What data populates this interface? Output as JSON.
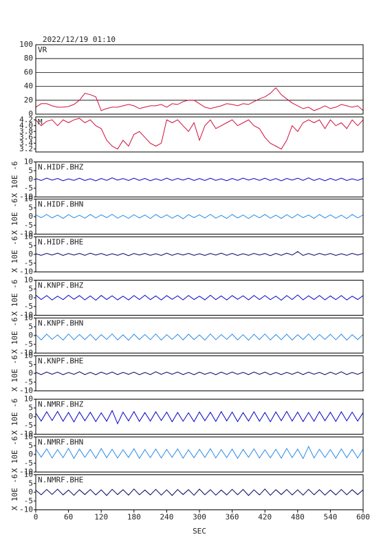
{
  "chart_data": {
    "type": "line",
    "title": "2022/12/19 01:10",
    "xlabel": "SEC",
    "x": [
      0,
      10,
      20,
      30,
      40,
      50,
      60,
      70,
      80,
      90,
      100,
      110,
      120,
      130,
      140,
      150,
      160,
      170,
      180,
      190,
      200,
      210,
      220,
      230,
      240,
      250,
      260,
      270,
      280,
      290,
      300,
      310,
      320,
      330,
      340,
      350,
      360,
      370,
      380,
      390,
      400,
      410,
      420,
      430,
      440,
      450,
      460,
      470,
      480,
      490,
      500,
      510,
      520,
      530,
      540,
      550,
      560,
      570,
      580,
      590,
      600
    ],
    "xlim": [
      0,
      600
    ],
    "xticks": [
      0,
      60,
      120,
      180,
      240,
      300,
      360,
      420,
      480,
      540,
      600
    ],
    "series": [
      {
        "name": "VR",
        "color": "#d0103a",
        "ylim": [
          0,
          100
        ],
        "yticks": [
          0,
          20,
          40,
          60,
          80,
          100
        ],
        "grid": true,
        "values": [
          10,
          15,
          15,
          12,
          10,
          10,
          11,
          14,
          20,
          30,
          28,
          25,
          5,
          8,
          10,
          10,
          12,
          14,
          12,
          8,
          10,
          12,
          12,
          14,
          10,
          15,
          14,
          18,
          20,
          20,
          15,
          10,
          8,
          10,
          12,
          15,
          14,
          12,
          15,
          14,
          18,
          22,
          25,
          30,
          38,
          28,
          22,
          16,
          12,
          8,
          10,
          5,
          8,
          12,
          8,
          10,
          14,
          12,
          10,
          12,
          5
        ]
      },
      {
        "name": "M",
        "color": "#d0103a",
        "ylim": [
          3.1,
          4.3
        ],
        "yticks": [
          3.2,
          3.4,
          3.6,
          3.8,
          {
            "value": 4,
            "label": "4.0"
          },
          4.2
        ],
        "grid": false,
        "values": [
          4.2,
          4.0,
          4.15,
          4.2,
          4.0,
          4.2,
          4.1,
          4.2,
          4.25,
          4.1,
          4.2,
          4.0,
          3.9,
          3.5,
          3.3,
          3.2,
          3.5,
          3.3,
          3.7,
          3.8,
          3.6,
          3.4,
          3.3,
          3.4,
          4.2,
          4.1,
          4.2,
          4.0,
          3.8,
          4.1,
          3.5,
          4.0,
          4.2,
          3.9,
          4.0,
          4.1,
          4.2,
          4.0,
          4.1,
          4.2,
          4.0,
          3.9,
          3.6,
          3.4,
          3.3,
          3.2,
          3.5,
          4.0,
          3.8,
          4.1,
          4.2,
          4.1,
          4.2,
          3.9,
          4.2,
          4.0,
          4.1,
          3.9,
          4.2,
          4.0,
          4.2
        ]
      },
      {
        "name": "N.HIDF.BHZ",
        "ylabel": "X 10E -6",
        "color": "#0000c8",
        "ylim": [
          -10,
          10
        ],
        "yticks": [
          -10,
          -5,
          0,
          5,
          10
        ],
        "grid": false,
        "values": [
          0.5,
          -0.6,
          0.8,
          -0.4,
          0.6,
          -0.7,
          0.3,
          -0.5,
          0.7,
          -0.6,
          0.4,
          -0.8,
          0.6,
          -0.5,
          0.9,
          -0.4,
          0.5,
          -0.6,
          0.7,
          -0.5,
          0.6,
          -0.7,
          0.4,
          -0.6,
          0.8,
          -0.5,
          0.6,
          -0.4,
          0.7,
          -0.6,
          0.5,
          -0.6,
          0.7,
          -0.5,
          0.4,
          -0.7,
          0.6,
          -0.5,
          0.8,
          -0.4,
          0.6,
          -0.5,
          0.7,
          -0.6,
          0.5,
          -0.8,
          0.6,
          -0.4,
          0.7,
          -0.5,
          0.9,
          -0.6,
          0.5,
          -0.7,
          0.6,
          -0.5,
          0.8,
          -0.6,
          0.4,
          -0.5,
          0.6
        ]
      },
      {
        "name": "N.HIDF.BHN",
        "ylabel": "X 10E -6",
        "color": "#2a8ae6",
        "ylim": [
          -10,
          10
        ],
        "yticks": [
          -10,
          -5,
          0,
          5,
          10
        ],
        "grid": false,
        "values": [
          1.0,
          -0.6,
          1.2,
          -0.8,
          0.9,
          -1.0,
          1.1,
          -0.7,
          0.8,
          -0.9,
          1.2,
          -0.8,
          1.0,
          -0.6,
          1.3,
          -0.9,
          0.7,
          -1.0,
          1.1,
          -0.8,
          0.9,
          -1.1,
          1.2,
          -0.7,
          1.0,
          -0.9,
          0.8,
          -1.2,
          1.1,
          -0.6,
          1.0,
          -0.8,
          1.3,
          -0.9,
          0.7,
          -1.0,
          1.2,
          -0.8,
          0.9,
          -1.1,
          1.0,
          -0.7,
          1.2,
          -0.9,
          0.8,
          -1.0,
          1.1,
          -0.8,
          1.3,
          -0.6,
          0.9,
          -1.0,
          1.2,
          -0.8,
          1.0,
          -0.9,
          0.8,
          -1.1,
          1.2,
          -0.7,
          0.9
        ]
      },
      {
        "name": "N.HIDF.BHE",
        "ylabel": "X 10E -6",
        "color": "#000060",
        "ylim": [
          -10,
          10
        ],
        "yticks": [
          -10,
          -5,
          0,
          5,
          10
        ],
        "grid": false,
        "values": [
          0.4,
          -0.5,
          0.6,
          -0.4,
          0.7,
          -0.6,
          0.5,
          -0.4,
          0.6,
          -0.5,
          0.7,
          -0.4,
          0.5,
          -0.6,
          0.4,
          -0.5,
          0.6,
          -0.7,
          0.5,
          -0.4,
          0.6,
          -0.5,
          0.4,
          -0.6,
          0.7,
          -0.5,
          0.5,
          -0.4,
          0.6,
          -0.5,
          0.4,
          -0.6,
          0.5,
          -0.4,
          0.7,
          -0.5,
          0.6,
          -0.6,
          0.4,
          -0.5,
          0.6,
          -0.4,
          0.5,
          -0.7,
          0.6,
          -0.5,
          0.7,
          -0.4,
          1.6,
          -0.6,
          0.5,
          -0.5,
          0.6,
          -0.4,
          0.5,
          -0.6,
          0.4,
          -0.5,
          0.6,
          -0.4,
          0.5
        ]
      },
      {
        "name": "N.KNPF.BHZ",
        "ylabel": "X 10E -6",
        "color": "#0000c8",
        "ylim": [
          -10,
          10
        ],
        "yticks": [
          -10,
          -5,
          0,
          5,
          10
        ],
        "grid": false,
        "values": [
          1.5,
          -1.0,
          1.2,
          -1.3,
          0.9,
          -1.1,
          1.4,
          -0.9,
          1.2,
          -1.2,
          1.0,
          -1.4,
          1.3,
          -1.0,
          1.1,
          -1.2,
          0.9,
          -1.3,
          1.2,
          -1.0,
          1.4,
          -1.1,
          1.0,
          -1.3,
          1.2,
          -0.9,
          1.1,
          -1.2,
          1.3,
          -1.0,
          0.9,
          -1.2,
          1.4,
          -1.1,
          1.0,
          -1.3,
          1.2,
          -0.9,
          1.1,
          -1.2,
          1.3,
          -1.0,
          1.2,
          -1.1,
          0.9,
          -1.4,
          1.2,
          -1.0,
          1.6,
          -1.2,
          1.1,
          -1.0,
          1.3,
          -1.2,
          1.0,
          -1.1,
          1.2,
          -1.3,
          0.9,
          -1.0,
          1.2
        ]
      },
      {
        "name": "N.KNPF.BHN",
        "ylabel": "X 10E -6",
        "color": "#2a8ae6",
        "ylim": [
          -10,
          10
        ],
        "yticks": [
          -10,
          -5,
          0,
          5,
          10
        ],
        "grid": false,
        "values": [
          0.5,
          -2.5,
          0.8,
          -2.2,
          0.4,
          -2.6,
          0.9,
          -2.4,
          0.6,
          -2.3,
          0.7,
          -2.6,
          0.5,
          -2.2,
          0.9,
          -2.5,
          0.4,
          -2.7,
          0.8,
          -2.3,
          0.6,
          -2.4,
          0.9,
          -2.6,
          0.5,
          -2.2,
          0.7,
          -2.5,
          0.8,
          -2.3,
          0.4,
          -2.6,
          0.9,
          -2.4,
          0.6,
          -2.2,
          0.8,
          -2.5,
          0.5,
          -2.7,
          0.7,
          -2.3,
          0.9,
          -2.5,
          0.6,
          -2.4,
          0.8,
          -2.6,
          0.5,
          -2.3,
          0.9,
          -2.5,
          0.6,
          -2.2,
          0.7,
          -2.4,
          0.8,
          -2.6,
          0.5,
          -2.3,
          0.6
        ]
      },
      {
        "name": "N.KNPF.BHE",
        "ylabel": "X 10E -6",
        "color": "#000060",
        "ylim": [
          -10,
          10
        ],
        "yticks": [
          -10,
          -5,
          0,
          5,
          10
        ],
        "grid": false,
        "values": [
          0.6,
          -0.7,
          0.8,
          -0.5,
          0.7,
          -0.8,
          0.5,
          -0.6,
          0.9,
          -0.7,
          0.6,
          -0.8,
          0.7,
          -0.5,
          0.8,
          -0.7,
          0.6,
          -0.6,
          0.7,
          -0.8,
          0.5,
          -0.7,
          0.9,
          -0.6,
          0.7,
          -0.5,
          0.8,
          -0.7,
          0.6,
          -0.8,
          0.7,
          -0.6,
          0.5,
          -0.8,
          0.7,
          -0.6,
          0.8,
          -0.5,
          0.6,
          -0.7,
          0.8,
          -0.6,
          0.7,
          -0.8,
          0.5,
          -0.7,
          0.6,
          -0.6,
          0.8,
          -0.7,
          0.7,
          -0.5,
          0.6,
          -0.8,
          0.7,
          -0.6,
          0.9,
          -0.7,
          0.5,
          -0.6,
          0.7
        ]
      },
      {
        "name": "N.NMRF.BHZ",
        "ylabel": "X 10E -6",
        "color": "#0000c8",
        "ylim": [
          -10,
          10
        ],
        "yticks": [
          -10,
          -5,
          0,
          5,
          10
        ],
        "grid": false,
        "values": [
          2.0,
          -2.5,
          2.8,
          -2.2,
          3.0,
          -2.6,
          2.4,
          -3.0,
          2.7,
          -2.3,
          2.5,
          -2.8,
          2.2,
          -2.6,
          3.5,
          -4.0,
          2.6,
          -2.4,
          2.9,
          -2.7,
          2.3,
          -2.5,
          2.8,
          -2.2,
          2.6,
          -2.9,
          2.4,
          -2.6,
          2.2,
          -2.8,
          2.7,
          -2.3,
          2.5,
          -2.7,
          2.9,
          -2.4,
          2.6,
          -2.8,
          2.3,
          -2.5,
          2.8,
          -2.6,
          2.4,
          -2.9,
          2.7,
          -2.3,
          3.0,
          -2.5,
          2.6,
          -2.8,
          2.4,
          -2.6,
          2.9,
          -2.3,
          2.5,
          -2.7,
          2.8,
          -2.4,
          2.6,
          -2.5,
          2.3
        ]
      },
      {
        "name": "N.NMRF.BHN",
        "ylabel": "X 10E -6",
        "color": "#2a8ae6",
        "ylim": [
          -10,
          10
        ],
        "yticks": [
          -10,
          -5,
          0,
          5,
          10
        ],
        "grid": false,
        "values": [
          3.0,
          -1.5,
          3.2,
          -2.0,
          2.8,
          -1.8,
          3.5,
          -2.2,
          3.1,
          -1.6,
          2.9,
          -2.1,
          3.4,
          -1.9,
          3.0,
          -2.0,
          2.7,
          -1.7,
          3.3,
          -2.2,
          2.8,
          -1.8,
          3.1,
          -2.0,
          2.9,
          -1.6,
          3.2,
          -2.1,
          2.7,
          -1.9,
          3.0,
          -1.7,
          3.3,
          -2.0,
          2.8,
          -1.8,
          3.1,
          -2.2,
          2.9,
          -1.6,
          3.2,
          -2.0,
          2.7,
          -1.9,
          3.0,
          -2.1,
          3.4,
          -1.8,
          3.1,
          -2.3,
          4.6,
          -2.0,
          3.0,
          -1.7,
          2.8,
          -2.1,
          3.2,
          -1.9,
          2.9,
          -2.0,
          3.1
        ]
      },
      {
        "name": "N.NMRF.BHE",
        "ylabel": "X 10E -6",
        "color": "#000060",
        "ylim": [
          -10,
          10
        ],
        "yticks": [
          -10,
          -5,
          0,
          5,
          10
        ],
        "grid": false,
        "values": [
          1.2,
          -1.4,
          1.6,
          -1.2,
          1.8,
          -1.5,
          1.3,
          -1.7,
          1.5,
          -1.3,
          1.6,
          -1.5,
          1.4,
          -1.8,
          1.7,
          -1.3,
          1.5,
          -1.6,
          1.9,
          -1.4,
          1.3,
          -1.5,
          1.7,
          -1.6,
          1.4,
          -1.8,
          1.6,
          -1.3,
          1.5,
          -1.7,
          1.8,
          -1.4,
          1.5,
          -1.6,
          1.3,
          -1.5,
          1.7,
          -1.4,
          1.6,
          -1.8,
          1.4,
          -1.5,
          1.9,
          -1.7,
          1.5,
          -1.3,
          1.6,
          -1.5,
          1.4,
          -1.6,
          1.7,
          -1.4,
          1.5,
          -1.6,
          1.3,
          -1.5,
          1.6,
          -1.4,
          1.5,
          -1.3,
          1.4
        ]
      }
    ]
  }
}
